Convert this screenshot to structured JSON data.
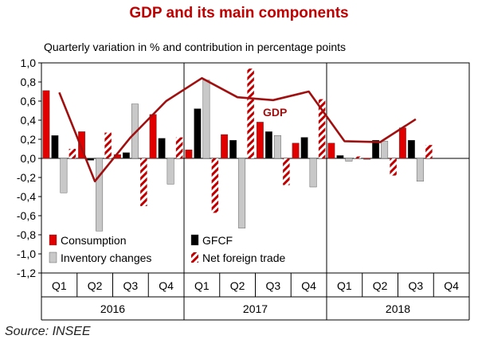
{
  "chart_data": {
    "type": "bar",
    "title": "GDP and its main components",
    "subtitle": "Quarterly variation in % and contribution in percentage points",
    "source": "Source: INSEE",
    "ylim": [
      -1.2,
      1.0
    ],
    "y_ticks": [
      "1,0",
      "0,8",
      "0,6",
      "0,4",
      "0,2",
      "0,0",
      "-0,2",
      "-0,4",
      "-0,6",
      "-0,8",
      "-1,0",
      "-1,2"
    ],
    "y_tick_values": [
      1.0,
      0.8,
      0.6,
      0.4,
      0.2,
      0.0,
      -0.2,
      -0.4,
      -0.6,
      -0.8,
      -1.0,
      -1.2
    ],
    "categories": [
      "Q1",
      "Q2",
      "Q3",
      "Q4",
      "Q1",
      "Q2",
      "Q3",
      "Q4",
      "Q1",
      "Q2",
      "Q3",
      "Q4"
    ],
    "years": [
      "2016",
      "2017",
      "2018"
    ],
    "series": [
      {
        "name": "Consumption",
        "color": "#e00000",
        "style": "solid",
        "values": [
          0.71,
          0.28,
          0.04,
          0.46,
          0.09,
          0.25,
          0.38,
          0.16,
          0.16,
          -0.01,
          0.32,
          null
        ]
      },
      {
        "name": "GFCF",
        "color": "#000000",
        "style": "solid",
        "values": [
          0.24,
          -0.02,
          0.06,
          0.21,
          0.52,
          0.19,
          0.28,
          0.22,
          0.03,
          0.19,
          0.19,
          null
        ]
      },
      {
        "name": "Inventory changes",
        "color": "#c8c8c8",
        "style": "solid",
        "values": [
          -0.36,
          -0.76,
          0.57,
          -0.27,
          0.82,
          -0.73,
          0.24,
          -0.3,
          -0.03,
          0.18,
          -0.24,
          null
        ]
      },
      {
        "name": "Net foreign trade",
        "color": "#c00000",
        "style": "hatched",
        "values": [
          0.1,
          0.27,
          -0.5,
          0.22,
          -0.57,
          0.94,
          -0.28,
          0.62,
          0.02,
          -0.18,
          0.14,
          null
        ]
      }
    ],
    "line_series": {
      "name": "GDP",
      "color": "#a01010",
      "values": [
        0.69,
        -0.24,
        0.22,
        0.6,
        0.84,
        0.64,
        0.61,
        0.7,
        0.18,
        0.17,
        0.41,
        null
      ]
    },
    "grid": false,
    "legend_position": "bottom-left"
  }
}
